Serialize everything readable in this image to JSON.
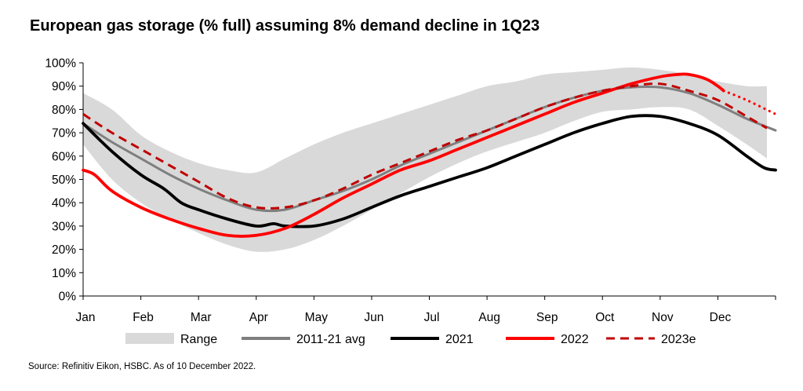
{
  "chart_data": {
    "type": "line",
    "title": "European gas storage (% full) assuming 8% demand decline in 1Q23",
    "source": "Source: Refinitiv Eikon, HSBC. As of 10 December 2022.",
    "xlabel": "",
    "ylabel": "",
    "ylim": [
      0,
      100
    ],
    "y_ticks": [
      0,
      10,
      20,
      30,
      40,
      50,
      60,
      70,
      80,
      90,
      100
    ],
    "y_tick_labels": [
      "0%",
      "10%",
      "20%",
      "30%",
      "40%",
      "50%",
      "60%",
      "70%",
      "80%",
      "90%",
      "100%"
    ],
    "x_tick_labels": [
      "Jan",
      "Feb",
      "Mar",
      "Apr",
      "May",
      "Jun",
      "Jul",
      "Aug",
      "Sep",
      "Oct",
      "Nov",
      "Dec"
    ],
    "x_unit": "month (0 = start of Jan, 12 = end of Dec)",
    "legend_position": "bottom",
    "range_band": {
      "name": "Range",
      "color": "#d9d9d9",
      "x": [
        0,
        0.5,
        1,
        1.5,
        2,
        2.5,
        3,
        3.5,
        4,
        4.5,
        5,
        5.5,
        6,
        6.5,
        7,
        7.5,
        8,
        8.5,
        9,
        9.5,
        10,
        10.5,
        11,
        11.5,
        11.85
      ],
      "lower": [
        65,
        50,
        40,
        33,
        27,
        22,
        19,
        20,
        24,
        30,
        37,
        44,
        51,
        57,
        62,
        66,
        70,
        75,
        79,
        80,
        81,
        80,
        73,
        65,
        59
      ],
      "upper": [
        87,
        80,
        69,
        62,
        57,
        54,
        53,
        59,
        65,
        70,
        74,
        78,
        82,
        86,
        90,
        92,
        95,
        96,
        97,
        98,
        97,
        95,
        92,
        90,
        90
      ]
    },
    "series": [
      {
        "name": "2011-21 avg",
        "color": "#7f7f7f",
        "style": "solid",
        "x": [
          0,
          0.5,
          1,
          1.5,
          2,
          2.5,
          3,
          3.5,
          4,
          4.5,
          5,
          5.5,
          6,
          6.5,
          7,
          7.5,
          8,
          8.5,
          9,
          9.5,
          10,
          10.5,
          11,
          11.5,
          12
        ],
        "values": [
          74,
          66,
          59,
          52,
          46,
          41,
          37,
          37,
          41,
          45,
          50,
          56,
          61,
          66,
          71,
          76,
          81,
          85,
          88,
          89.5,
          89.5,
          87,
          82,
          76,
          71
        ]
      },
      {
        "name": "2021",
        "color": "#000000",
        "style": "solid",
        "x": [
          0,
          0.5,
          1,
          1.4,
          1.7,
          2,
          2.5,
          3,
          3.3,
          3.5,
          4,
          4.5,
          5,
          5.5,
          6,
          6.5,
          7,
          7.5,
          8,
          8.5,
          9,
          9.5,
          10,
          10.5,
          11,
          11.5,
          11.8,
          12
        ],
        "values": [
          74,
          62,
          52,
          46,
          40,
          37,
          33,
          30,
          31,
          30,
          30,
          33,
          38,
          43,
          47,
          51,
          55,
          60,
          65,
          70,
          74,
          77,
          77,
          74,
          69,
          60,
          55,
          54
        ]
      },
      {
        "name": "2022",
        "color": "#ff0000",
        "style": "solid",
        "x": [
          0,
          0.2,
          0.5,
          1,
          1.5,
          2,
          2.5,
          3,
          3.5,
          4,
          4.5,
          5,
          5.5,
          6,
          6.5,
          7,
          7.5,
          8,
          8.5,
          9,
          9.5,
          10,
          10.3,
          10.5,
          10.8,
          11,
          11.1
        ],
        "values": [
          54,
          52,
          45,
          38,
          33,
          29,
          26,
          26,
          29,
          35,
          42,
          48,
          54,
          58,
          63,
          68,
          73,
          78,
          83,
          87,
          91,
          94,
          95,
          95,
          93,
          90,
          88
        ]
      },
      {
        "name": "2022 (projection)",
        "color": "#ff0000",
        "style": "dotted",
        "x": [
          11.1,
          11.5,
          12
        ],
        "values": [
          88,
          84,
          78
        ]
      },
      {
        "name": "2023e",
        "color": "#c00000",
        "style": "dashed",
        "x": [
          0,
          0.5,
          1,
          1.5,
          2,
          2.5,
          3,
          3.5,
          4,
          4.5,
          5,
          5.5,
          6,
          6.5,
          7,
          7.5,
          8,
          8.5,
          9,
          9.5,
          10,
          10.5,
          11,
          11.5,
          11.85
        ],
        "values": [
          78,
          70,
          63,
          56,
          49,
          42,
          38,
          38,
          41,
          46,
          52,
          57,
          62,
          67,
          71,
          76,
          81,
          85,
          88,
          90,
          91,
          88,
          84,
          77,
          72
        ]
      }
    ],
    "legend": [
      {
        "label": "Range",
        "kind": "band",
        "color": "#d9d9d9"
      },
      {
        "label": "2011-21 avg",
        "kind": "solid",
        "color": "#7f7f7f"
      },
      {
        "label": "2021",
        "kind": "solid",
        "color": "#000000"
      },
      {
        "label": "2022",
        "kind": "solid",
        "color": "#ff0000"
      },
      {
        "label": "2023e",
        "kind": "dashed",
        "color": "#c00000"
      }
    ]
  }
}
